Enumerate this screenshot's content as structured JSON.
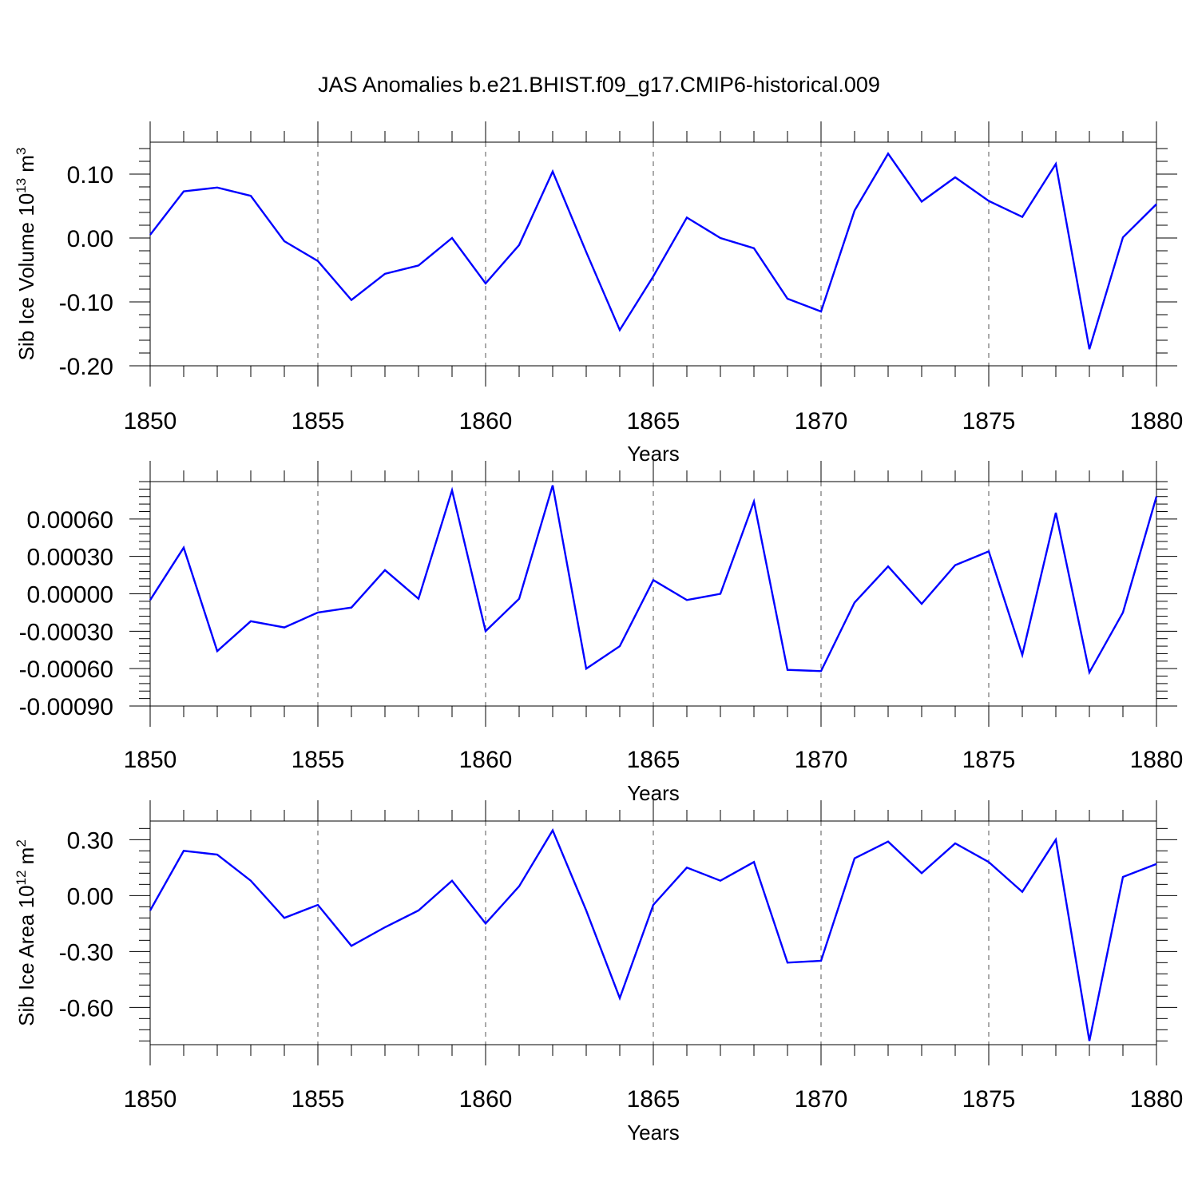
{
  "title": "JAS Anomalies b.e21.BHIST.f09_g17.CMIP6-historical.009",
  "colors": {
    "line": "#0000ff",
    "axis": "#000000",
    "grid": "#555555"
  },
  "chart_data": [
    {
      "type": "line",
      "id": "volume",
      "ylabel": "Sib Ice Volume 10^13 m^3",
      "ylabel_base": "Sib Ice Volume 10",
      "ylabel_sup1": "13",
      "ylabel_mid": " m",
      "ylabel_sup2": "3",
      "xlabel": "Years",
      "xlim": [
        1850,
        1880
      ],
      "ylim": [
        -0.2,
        0.15
      ],
      "grid": "vertical dashed at major x ticks",
      "x_ticks": [
        "1850",
        "1855",
        "1860",
        "1865",
        "1870",
        "1875",
        "1880"
      ],
      "y_ticks": [
        "0.10",
        "0.00",
        "-0.10",
        "-0.20"
      ],
      "y_tick_values": [
        0.1,
        0.0,
        -0.1,
        -0.2
      ],
      "x": [
        1850,
        1851,
        1852,
        1853,
        1854,
        1855,
        1856,
        1857,
        1858,
        1859,
        1860,
        1861,
        1862,
        1863,
        1864,
        1865,
        1866,
        1867,
        1868,
        1869,
        1870,
        1871,
        1872,
        1873,
        1874,
        1875,
        1876,
        1877,
        1878,
        1879,
        1880
      ],
      "values": [
        0.005,
        0.073,
        0.079,
        0.066,
        -0.005,
        -0.036,
        -0.097,
        -0.056,
        -0.043,
        0.0,
        -0.071,
        -0.011,
        0.104,
        -0.022,
        -0.144,
        -0.06,
        0.032,
        0.0,
        -0.016,
        -0.095,
        -0.115,
        0.043,
        0.132,
        0.057,
        0.095,
        0.058,
        0.033,
        0.116,
        -0.174,
        0.001,
        0.053
      ]
    },
    {
      "type": "line",
      "id": "thickness",
      "ylabel": "",
      "xlabel": "Years",
      "xlim": [
        1850,
        1880
      ],
      "ylim": [
        -0.0009,
        0.0009
      ],
      "grid": "vertical dashed at major x ticks",
      "x_ticks": [
        "1850",
        "1855",
        "1860",
        "1865",
        "1870",
        "1875",
        "1880"
      ],
      "y_ticks": [
        "0.00060",
        "0.00030",
        "0.00000",
        "-0.00030",
        "-0.00060",
        "-0.00090"
      ],
      "y_tick_values": [
        0.0006,
        0.0003,
        0.0,
        -0.0003,
        -0.0006,
        -0.0009
      ],
      "x": [
        1850,
        1851,
        1852,
        1853,
        1854,
        1855,
        1856,
        1857,
        1858,
        1859,
        1860,
        1861,
        1862,
        1863,
        1864,
        1865,
        1866,
        1867,
        1868,
        1869,
        1870,
        1871,
        1872,
        1873,
        1874,
        1875,
        1876,
        1877,
        1878,
        1879,
        1880
      ],
      "values": [
        -5e-05,
        0.00037,
        -0.00046,
        -0.00022,
        -0.00027,
        -0.00015,
        -0.00011,
        0.00019,
        -4e-05,
        0.00083,
        -0.0003,
        -4e-05,
        0.00087,
        -0.0006,
        -0.00042,
        0.00011,
        -5e-05,
        0.0,
        0.00074,
        -0.00061,
        -0.00062,
        -7e-05,
        0.00022,
        -8e-05,
        0.00023,
        0.00034,
        -0.00049,
        0.00065,
        -0.00063,
        -0.00015,
        0.00078
      ]
    },
    {
      "type": "line",
      "id": "area",
      "ylabel": "Sib Ice Area 10^12 m^2",
      "ylabel_base": "Sib Ice Area 10",
      "ylabel_sup1": "12",
      "ylabel_mid": " m",
      "ylabel_sup2": "2",
      "xlabel": "Years",
      "xlim": [
        1850,
        1880
      ],
      "ylim": [
        -0.8,
        0.4
      ],
      "grid": "vertical dashed at major x ticks",
      "x_ticks": [
        "1850",
        "1855",
        "1860",
        "1865",
        "1870",
        "1875",
        "1880"
      ],
      "y_ticks": [
        "0.30",
        "0.00",
        "-0.30",
        "-0.60"
      ],
      "y_tick_values": [
        0.3,
        0.0,
        -0.3,
        -0.6
      ],
      "x": [
        1850,
        1851,
        1852,
        1853,
        1854,
        1855,
        1856,
        1857,
        1858,
        1859,
        1860,
        1861,
        1862,
        1863,
        1864,
        1865,
        1866,
        1867,
        1868,
        1869,
        1870,
        1871,
        1872,
        1873,
        1874,
        1875,
        1876,
        1877,
        1878,
        1879,
        1880
      ],
      "values": [
        -0.08,
        0.24,
        0.22,
        0.08,
        -0.12,
        -0.05,
        -0.27,
        -0.17,
        -0.08,
        0.08,
        -0.15,
        0.05,
        0.35,
        -0.08,
        -0.55,
        -0.05,
        0.15,
        0.08,
        0.18,
        -0.36,
        -0.35,
        0.2,
        0.29,
        0.12,
        0.28,
        0.18,
        0.02,
        0.3,
        -0.78,
        0.1,
        0.17
      ]
    }
  ]
}
